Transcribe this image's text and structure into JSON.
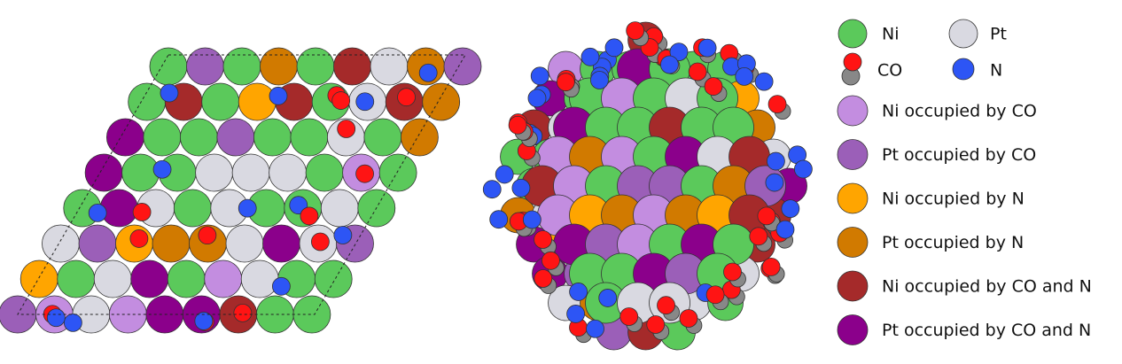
{
  "legend": {
    "ni": "Ni",
    "pt": "Pt",
    "co": "CO",
    "n": "N",
    "items": [
      "Ni occupied by CO",
      "Pt occupied by CO",
      "Ni occupied by N",
      "Pt occupied by N",
      "Ni occupied by CO and N",
      "Pt occupied by CO and N"
    ]
  }
}
